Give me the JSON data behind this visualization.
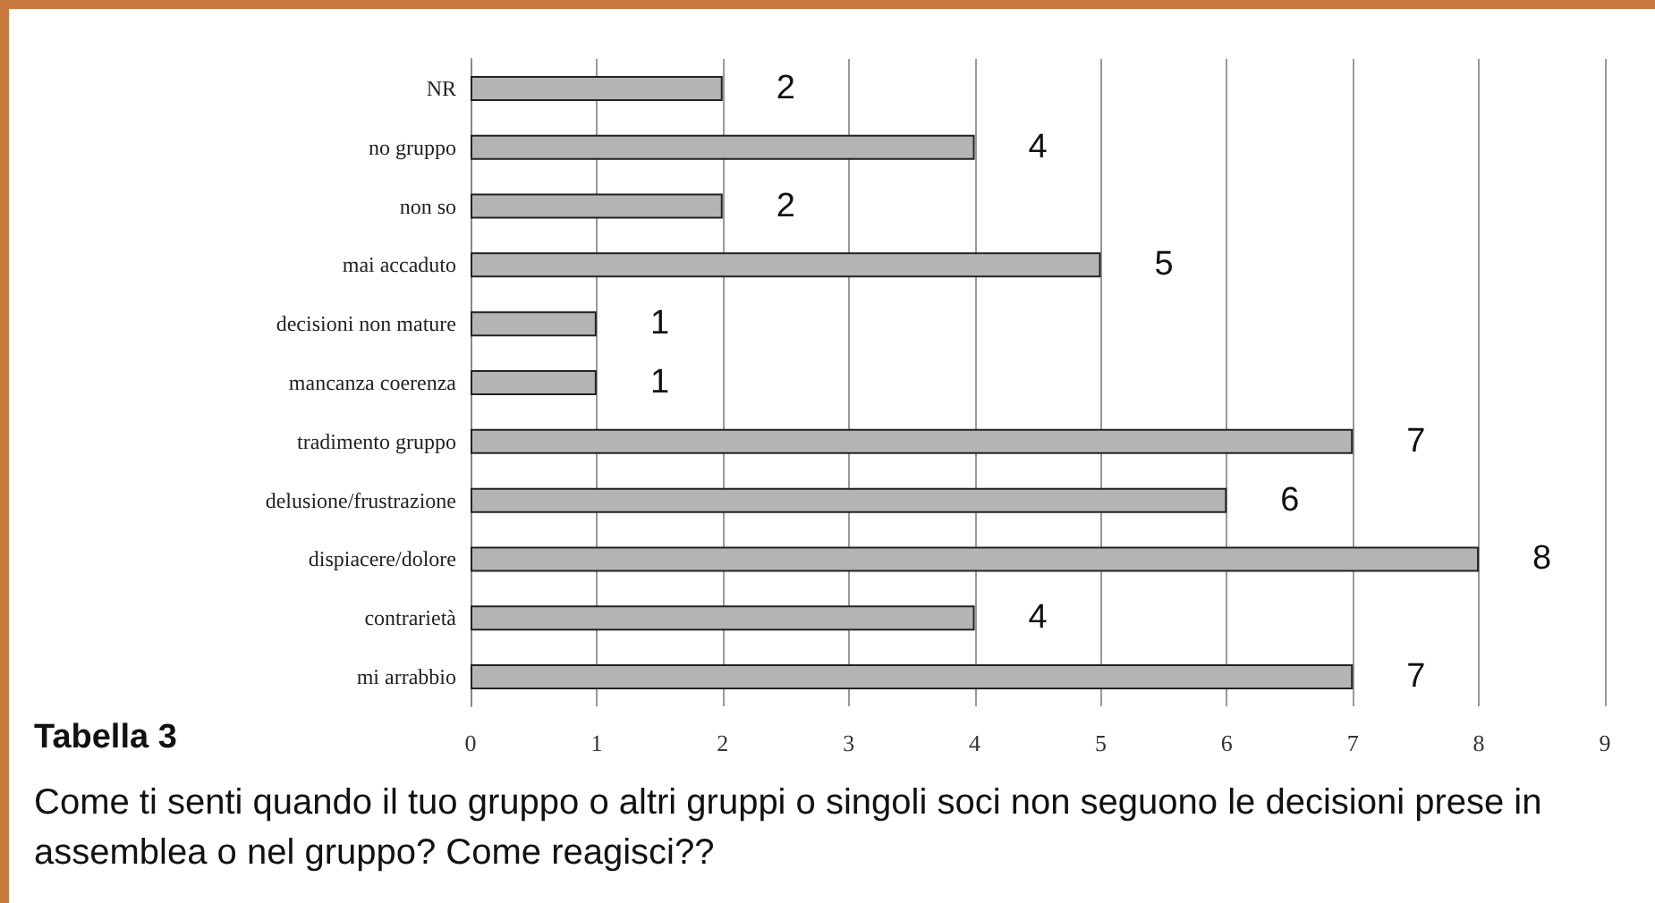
{
  "chart_data": {
    "type": "bar",
    "orientation": "horizontal",
    "categories": [
      "NR",
      "no gruppo",
      "non so",
      "mai accaduto",
      "decisioni non mature",
      "mancanza coerenza",
      "tradimento gruppo",
      "delusione/frustrazione",
      "dispiacere/dolore",
      "contrarietà",
      "mi arrabbio"
    ],
    "values": [
      2,
      4,
      2,
      5,
      1,
      1,
      7,
      6,
      8,
      4,
      7
    ],
    "color": "#b4b4b4",
    "xlim": [
      0,
      9
    ],
    "xticks": [
      0,
      1,
      2,
      3,
      4,
      5,
      6,
      7,
      8,
      9
    ],
    "grid": "x",
    "data_labels": true,
    "annotations": [
      "Tabella 3",
      "Come ti senti quando il tuo gruppo o altri gruppi o singoli soci non seguono le decisioni prese in assemblea o nel gruppo? Come reagisci??"
    ]
  }
}
